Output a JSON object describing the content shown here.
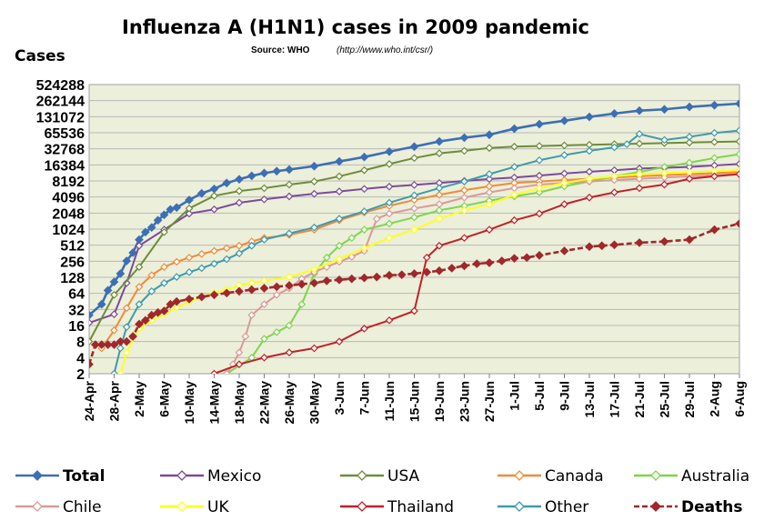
{
  "chart_data": {
    "type": "line",
    "title": "Influenza A (H1N1) cases in 2009 pandemic",
    "source_label": "Source: WHO",
    "source_url": "(http://www.who.int/csr/)",
    "ylabel": "Cases",
    "yscale": "log2",
    "ylim": [
      2,
      524288
    ],
    "yticks": [
      "2",
      "4",
      "8",
      "16",
      "32",
      "64",
      "128",
      "256",
      "512",
      "1024",
      "2048",
      "4096",
      "8192",
      "16384",
      "32768",
      "65536",
      "131072",
      "262144",
      "524288"
    ],
    "x_start": "2009-04-24",
    "x_end": "2009-08-06",
    "xticks": [
      "24-Apr",
      "28-Apr",
      "2-May",
      "6-May",
      "10-May",
      "14-May",
      "18-May",
      "22-May",
      "26-May",
      "30-May",
      "3-Jun",
      "7-Jun",
      "11-Jun",
      "15-Jun",
      "19-Jun",
      "23-Jun",
      "27-Jun",
      "1-Jul",
      "5-Jul",
      "9-Jul",
      "13-Jul",
      "17-Jul",
      "21-Jul",
      "25-Jul",
      "29-Jul",
      "2-Aug",
      "6-Aug"
    ],
    "grid": true,
    "plot_background": "#ecefd9",
    "legend_position": "bottom",
    "series": [
      {
        "name": "Total",
        "color": "#3d6fb4",
        "marker": "diamond-filled",
        "bold": true,
        "x": [
          "24-Apr",
          "26-Apr",
          "27-Apr",
          "28-Apr",
          "29-Apr",
          "30-Apr",
          "1-May",
          "2-May",
          "3-May",
          "4-May",
          "5-May",
          "6-May",
          "7-May",
          "8-May",
          "10-May",
          "12-May",
          "14-May",
          "16-May",
          "18-May",
          "20-May",
          "22-May",
          "24-May",
          "26-May",
          "30-May",
          "3-Jun",
          "7-Jun",
          "11-Jun",
          "15-Jun",
          "19-Jun",
          "23-Jun",
          "27-Jun",
          "1-Jul",
          "5-Jul",
          "9-Jul",
          "13-Jul",
          "17-Jul",
          "21-Jul",
          "25-Jul",
          "29-Jul",
          "2-Aug",
          "6-Aug"
        ],
        "y": [
          25,
          40,
          73,
          105,
          150,
          260,
          370,
          650,
          900,
          1100,
          1500,
          1900,
          2400,
          2600,
          3600,
          4800,
          5800,
          7500,
          8800,
          10200,
          11500,
          12500,
          13400,
          15500,
          19000,
          23000,
          29000,
          36000,
          45000,
          53000,
          60000,
          78000,
          95000,
          110000,
          130000,
          150000,
          170000,
          180000,
          200000,
          215000,
          230000
        ]
      },
      {
        "name": "Mexico",
        "color": "#7b4a9b",
        "marker": "diamond-open",
        "x": [
          "24-Apr",
          "28-Apr",
          "30-Apr",
          "2-May",
          "6-May",
          "10-May",
          "14-May",
          "18-May",
          "22-May",
          "26-May",
          "30-May",
          "3-Jun",
          "7-Jun",
          "11-Jun",
          "15-Jun",
          "19-Jun",
          "23-Jun",
          "27-Jun",
          "1-Jul",
          "5-Jul",
          "9-Jul",
          "13-Jul",
          "17-Jul",
          "21-Jul",
          "25-Jul",
          "29-Jul",
          "2-Aug",
          "6-Aug"
        ],
        "y": [
          18,
          26,
          100,
          500,
          1000,
          2000,
          2400,
          3200,
          3700,
          4200,
          4700,
          5200,
          5800,
          6400,
          6900,
          7500,
          8200,
          8900,
          9500,
          10300,
          11300,
          12200,
          13000,
          14000,
          14500,
          15000,
          16000,
          17000
        ]
      },
      {
        "name": "USA",
        "color": "#6d8c3c",
        "marker": "diamond-open",
        "x": [
          "24-Apr",
          "28-Apr",
          "2-May",
          "6-May",
          "10-May",
          "14-May",
          "18-May",
          "22-May",
          "26-May",
          "30-May",
          "3-Jun",
          "7-Jun",
          "11-Jun",
          "15-Jun",
          "19-Jun",
          "23-Jun",
          "27-Jun",
          "1-Jul",
          "5-Jul",
          "9-Jul",
          "13-Jul",
          "17-Jul",
          "21-Jul",
          "25-Jul",
          "29-Jul",
          "2-Aug",
          "6-Aug"
        ],
        "y": [
          8,
          60,
          200,
          900,
          2500,
          4300,
          5300,
          6000,
          7000,
          8000,
          10000,
          13000,
          17000,
          22000,
          27000,
          30000,
          34000,
          36000,
          37000,
          38000,
          39000,
          40000,
          41000,
          42000,
          43000,
          44000,
          45000
        ]
      },
      {
        "name": "Canada",
        "color": "#ee8c3a",
        "marker": "diamond-open",
        "x": [
          "26-Apr",
          "28-Apr",
          "30-Apr",
          "2-May",
          "4-May",
          "6-May",
          "8-May",
          "10-May",
          "12-May",
          "14-May",
          "16-May",
          "18-May",
          "20-May",
          "22-May",
          "26-May",
          "30-May",
          "3-Jun",
          "7-Jun",
          "11-Jun",
          "15-Jun",
          "19-Jun",
          "23-Jun",
          "27-Jun",
          "1-Jul",
          "5-Jul",
          "9-Jul",
          "13-Jul",
          "17-Jul",
          "21-Jul",
          "25-Jul",
          "29-Jul",
          "2-Aug",
          "6-Aug"
        ],
        "y": [
          6,
          13,
          34,
          85,
          140,
          200,
          250,
          300,
          350,
          400,
          450,
          500,
          600,
          700,
          800,
          1000,
          1500,
          2100,
          2800,
          3600,
          4500,
          5500,
          6500,
          7500,
          8000,
          8500,
          9000,
          9500,
          10000,
          10500,
          11000,
          11500,
          12000
        ]
      },
      {
        "name": "Australia",
        "color": "#7fd44e",
        "marker": "diamond-open",
        "x": [
          "12-May",
          "16-May",
          "20-May",
          "22-May",
          "24-May",
          "26-May",
          "28-May",
          "30-May",
          "1-Jun",
          "3-Jun",
          "5-Jun",
          "7-Jun",
          "11-Jun",
          "15-Jun",
          "19-Jun",
          "23-Jun",
          "27-Jun",
          "1-Jul",
          "5-Jul",
          "9-Jul",
          "13-Jul",
          "17-Jul",
          "21-Jul",
          "25-Jul",
          "29-Jul",
          "2-Aug",
          "6-Aug"
        ],
        "y": [
          1,
          2,
          4,
          9,
          12,
          16,
          40,
          150,
          300,
          500,
          700,
          1000,
          1300,
          1700,
          2300,
          2800,
          3500,
          4200,
          5000,
          6500,
          8000,
          10000,
          12000,
          15000,
          18000,
          22000,
          26000
        ]
      },
      {
        "name": "Chile",
        "color": "#d99a9a",
        "marker": "diamond-open",
        "x": [
          "16-May",
          "17-May",
          "18-May",
          "19-May",
          "20-May",
          "22-May",
          "24-May",
          "26-May",
          "28-May",
          "30-May",
          "1-Jun",
          "3-Jun",
          "5-Jun",
          "7-Jun",
          "9-Jun",
          "11-Jun",
          "15-Jun",
          "19-Jun",
          "23-Jun",
          "27-Jun",
          "1-Jul",
          "5-Jul",
          "9-Jul",
          "13-Jul",
          "17-Jul",
          "21-Jul",
          "25-Jul",
          "29-Jul",
          "2-Aug",
          "6-Aug"
        ],
        "y": [
          2,
          3,
          5,
          10,
          25,
          40,
          60,
          80,
          120,
          160,
          200,
          250,
          310,
          400,
          1600,
          2000,
          2500,
          3000,
          4000,
          5000,
          6000,
          7000,
          7500,
          8000,
          8500,
          9000,
          9500,
          10000,
          10500,
          11000
        ]
      },
      {
        "name": "UK",
        "color": "#ffff1a",
        "marker": "diamond-open",
        "x": [
          "29-Apr",
          "30-Apr",
          "2-May",
          "4-May",
          "6-May",
          "8-May",
          "10-May",
          "12-May",
          "14-May",
          "16-May",
          "18-May",
          "20-May",
          "22-May",
          "26-May",
          "30-May",
          "3-Jun",
          "7-Jun",
          "11-Jun",
          "15-Jun",
          "19-Jun",
          "23-Jun",
          "27-Jun",
          "1-Jul",
          "5-Jul",
          "9-Jul",
          "13-Jul",
          "17-Jul",
          "21-Jul",
          "25-Jul",
          "29-Jul",
          "2-Aug",
          "6-Aug"
        ],
        "y": [
          2,
          5,
          14,
          20,
          26,
          35,
          45,
          55,
          65,
          75,
          90,
          100,
          110,
          130,
          180,
          280,
          450,
          700,
          1000,
          1600,
          2300,
          3000,
          4500,
          6000,
          7500,
          9000,
          10000,
          11000,
          11500,
          12000,
          12500,
          13000
        ]
      },
      {
        "name": "Thailand",
        "color": "#c0202a",
        "marker": "diamond-open",
        "x": [
          "12-May",
          "14-May",
          "18-May",
          "22-May",
          "26-May",
          "30-May",
          "3-Jun",
          "7-Jun",
          "11-Jun",
          "15-Jun",
          "17-Jun",
          "19-Jun",
          "23-Jun",
          "27-Jun",
          "1-Jul",
          "5-Jul",
          "9-Jul",
          "13-Jul",
          "17-Jul",
          "21-Jul",
          "25-Jul",
          "29-Jul",
          "2-Aug",
          "6-Aug"
        ],
        "y": [
          1,
          2,
          3,
          4,
          5,
          6,
          8,
          14,
          20,
          30,
          300,
          500,
          700,
          1000,
          1500,
          2000,
          3000,
          4000,
          5000,
          6000,
          7000,
          9000,
          10000,
          11000
        ]
      },
      {
        "name": "Other",
        "color": "#3f9aac",
        "marker": "diamond-open",
        "x": [
          "28-Apr",
          "29-Apr",
          "30-Apr",
          "2-May",
          "4-May",
          "6-May",
          "8-May",
          "10-May",
          "12-May",
          "14-May",
          "16-May",
          "18-May",
          "20-May",
          "22-May",
          "26-May",
          "30-May",
          "3-Jun",
          "7-Jun",
          "11-Jun",
          "15-Jun",
          "19-Jun",
          "23-Jun",
          "27-Jun",
          "1-Jul",
          "5-Jul",
          "9-Jul",
          "13-Jul",
          "17-Jul",
          "19-Jul",
          "21-Jul",
          "25-Jul",
          "29-Jul",
          "2-Aug",
          "6-Aug"
        ],
        "y": [
          2,
          6,
          15,
          40,
          70,
          100,
          130,
          160,
          190,
          230,
          280,
          360,
          500,
          650,
          850,
          1100,
          1600,
          2200,
          3200,
          4400,
          6000,
          8000,
          11000,
          15000,
          20000,
          25000,
          30000,
          35000,
          40000,
          62000,
          48000,
          55000,
          65000,
          72000
        ]
      },
      {
        "name": "Deaths",
        "color": "#a0282c",
        "marker": "diamond-filled",
        "dashed": true,
        "bold": true,
        "x": [
          "24-Apr",
          "25-Apr",
          "26-Apr",
          "27-Apr",
          "28-Apr",
          "29-Apr",
          "30-Apr",
          "1-May",
          "2-May",
          "3-May",
          "4-May",
          "5-May",
          "6-May",
          "7-May",
          "8-May",
          "10-May",
          "12-May",
          "14-May",
          "16-May",
          "18-May",
          "20-May",
          "22-May",
          "24-May",
          "26-May",
          "28-May",
          "30-May",
          "1-Jun",
          "3-Jun",
          "5-Jun",
          "7-Jun",
          "9-Jun",
          "11-Jun",
          "13-Jun",
          "15-Jun",
          "17-Jun",
          "19-Jun",
          "21-Jun",
          "23-Jun",
          "25-Jun",
          "27-Jun",
          "29-Jun",
          "1-Jul",
          "3-Jul",
          "5-Jul",
          "9-Jul",
          "13-Jul",
          "15-Jul",
          "17-Jul",
          "21-Jul",
          "25-Jul",
          "29-Jul",
          "2-Aug",
          "6-Aug"
        ],
        "y": [
          3,
          7,
          7,
          7,
          7,
          8,
          8,
          10,
          17,
          20,
          25,
          28,
          30,
          40,
          45,
          50,
          55,
          60,
          65,
          70,
          75,
          80,
          85,
          90,
          95,
          100,
          110,
          115,
          120,
          125,
          130,
          140,
          143,
          150,
          160,
          170,
          190,
          210,
          230,
          240,
          260,
          290,
          300,
          330,
          400,
          480,
          500,
          520,
          570,
          600,
          650,
          1000,
          1300
        ]
      }
    ]
  }
}
